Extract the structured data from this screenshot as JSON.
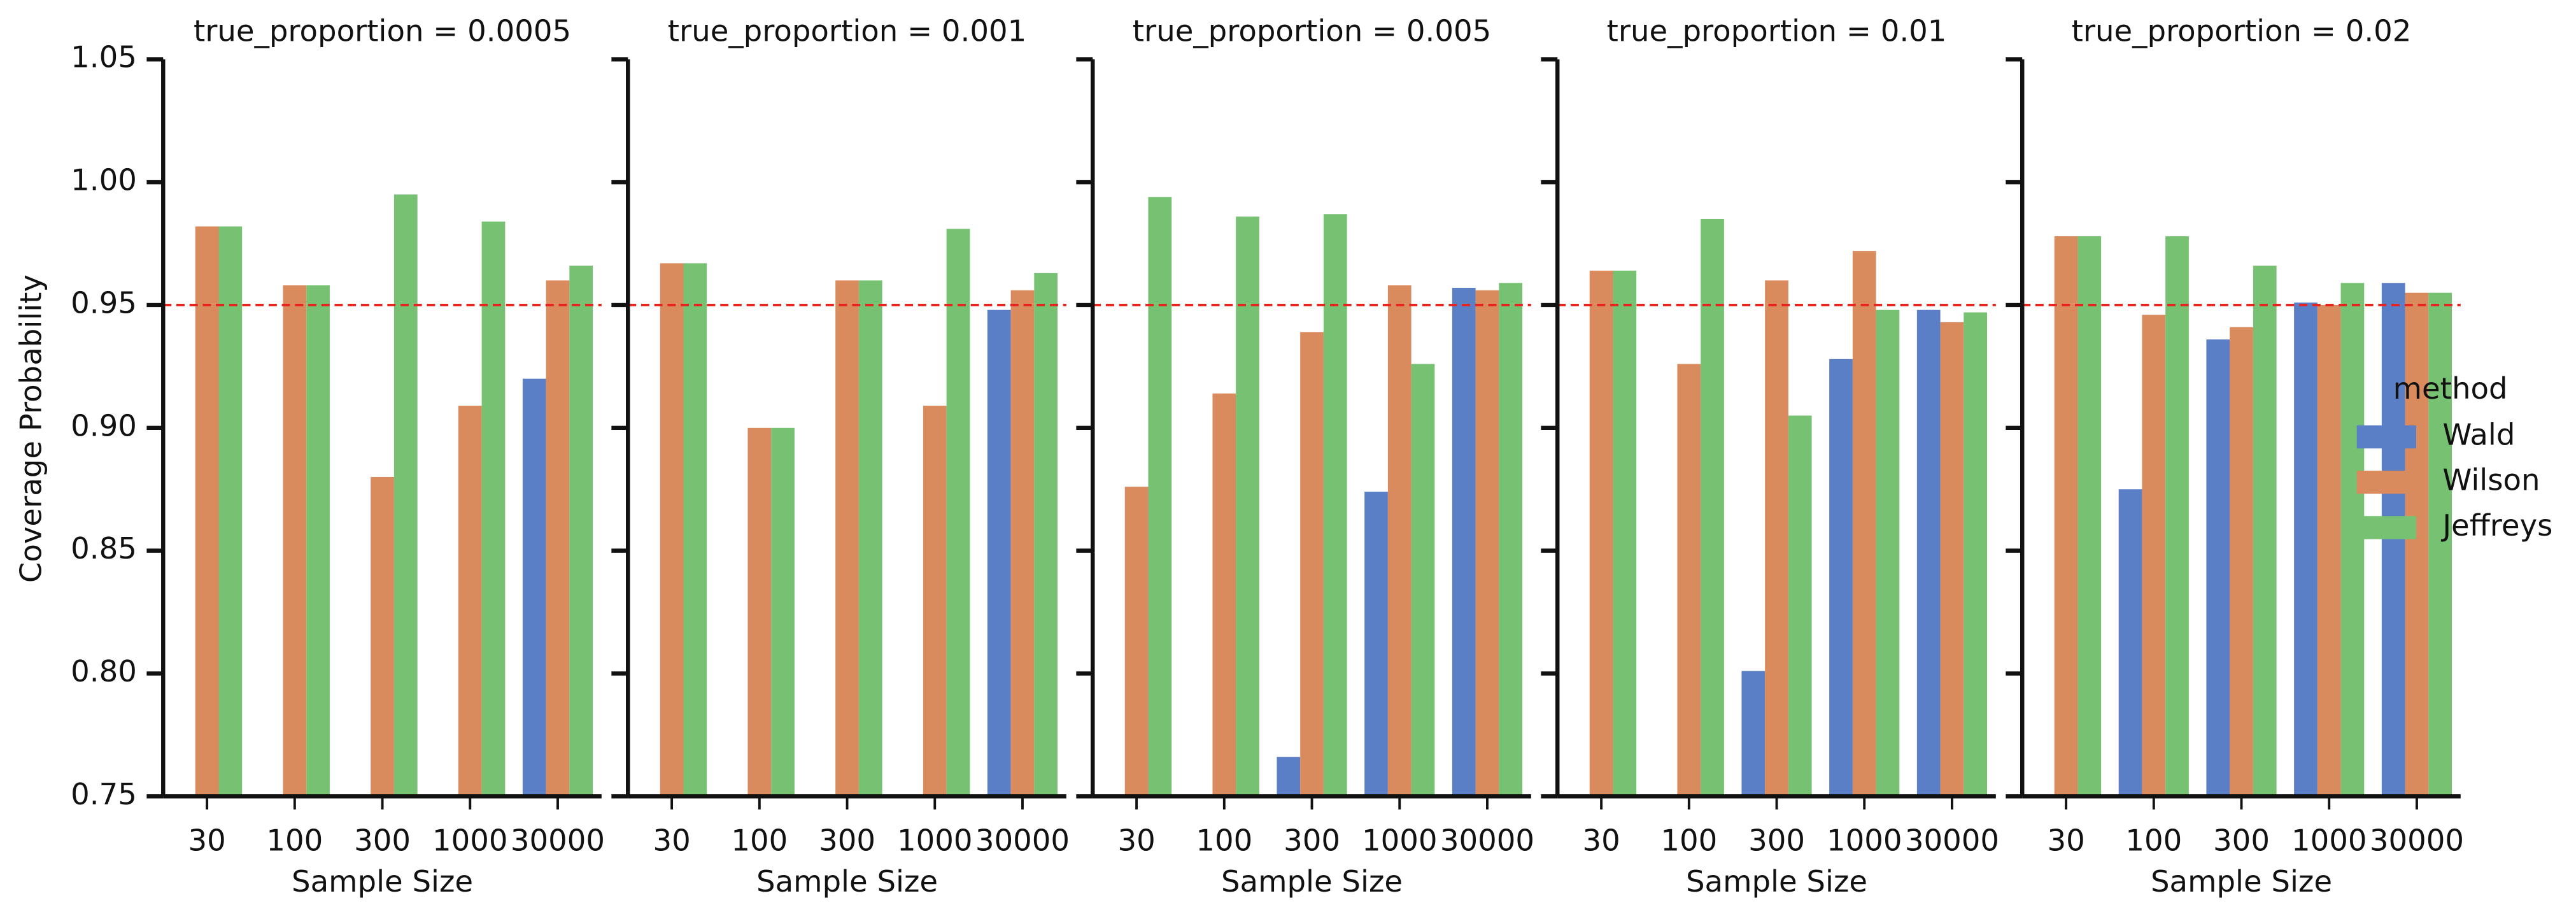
{
  "chart_data": [
    {
      "type": "bar",
      "title": "true_proportion = 0.0005",
      "xlabel": "Sample Size",
      "ylabel": "Coverage Probability",
      "categories": [
        "30",
        "100",
        "300",
        "1000",
        "30000"
      ],
      "series": [
        {
          "name": "Wald",
          "color": "#5b7fc6",
          "values": [
            null,
            null,
            null,
            null,
            0.92
          ]
        },
        {
          "name": "Wilson",
          "color": "#d98b5e",
          "values": [
            0.982,
            0.958,
            0.88,
            0.909,
            0.96
          ]
        },
        {
          "name": "Jeffreys",
          "color": "#77c172",
          "values": [
            0.982,
            0.958,
            0.995,
            0.984,
            0.966
          ]
        }
      ],
      "ylim": [
        0.75,
        1.05
      ],
      "yticks": [
        0.75,
        {
          "value": 0.8,
          "label": "0.80"
        },
        0.85,
        {
          "value": 0.9,
          "label": "0.90"
        },
        0.95,
        {
          "value": 1,
          "label": "1.00"
        },
        1.05
      ],
      "hline": 0.95,
      "hline_color": "#e8231f",
      "legend_title": "method",
      "legend_position": "right"
    },
    {
      "type": "bar",
      "title": "true_proportion = 0.001",
      "xlabel": "Sample Size",
      "categories": [
        "30",
        "100",
        "300",
        "1000",
        "30000"
      ],
      "series": [
        {
          "color": "#5b7fc6",
          "values": [
            null,
            null,
            null,
            null,
            0.948
          ]
        },
        {
          "color": "#d98b5e",
          "values": [
            0.967,
            0.9,
            0.96,
            0.909,
            0.956
          ]
        },
        {
          "color": "#77c172",
          "values": [
            0.967,
            0.9,
            0.96,
            0.981,
            0.963
          ]
        }
      ],
      "hline": 0.95
    },
    {
      "type": "bar",
      "title": "true_proportion = 0.005",
      "xlabel": "Sample Size",
      "categories": [
        "30",
        "100",
        "300",
        "1000",
        "30000"
      ],
      "series": [
        {
          "color": "#5b7fc6",
          "values": [
            null,
            null,
            0.766,
            0.874,
            0.957
          ]
        },
        {
          "color": "#d98b5e",
          "values": [
            0.876,
            0.914,
            0.939,
            0.958,
            0.956
          ]
        },
        {
          "color": "#77c172",
          "values": [
            0.994,
            0.986,
            0.987,
            0.926,
            0.959
          ]
        }
      ],
      "hline": 0.95
    },
    {
      "type": "bar",
      "title": "true_proportion = 0.01",
      "xlabel": "Sample Size",
      "categories": [
        "30",
        "100",
        "300",
        "1000",
        "30000"
      ],
      "series": [
        {
          "color": "#5b7fc6",
          "values": [
            null,
            null,
            0.801,
            0.928,
            0.948
          ]
        },
        {
          "color": "#d98b5e",
          "values": [
            0.964,
            0.926,
            0.96,
            0.972,
            0.943
          ]
        },
        {
          "color": "#77c172",
          "values": [
            0.964,
            0.985,
            0.905,
            0.948,
            0.947
          ]
        }
      ],
      "hline": 0.95
    },
    {
      "type": "bar",
      "title": "true_proportion = 0.02",
      "xlabel": "Sample Size",
      "categories": [
        "30",
        "100",
        "300",
        "1000",
        "30000"
      ],
      "series": [
        {
          "color": "#5b7fc6",
          "values": [
            null,
            0.875,
            0.936,
            0.951,
            0.959
          ]
        },
        {
          "color": "#d98b5e",
          "values": [
            0.978,
            0.946,
            0.941,
            0.95,
            0.955
          ]
        },
        {
          "color": "#77c172",
          "values": [
            0.978,
            0.978,
            0.966,
            0.959,
            0.955
          ]
        }
      ],
      "hline": 0.95
    }
  ]
}
